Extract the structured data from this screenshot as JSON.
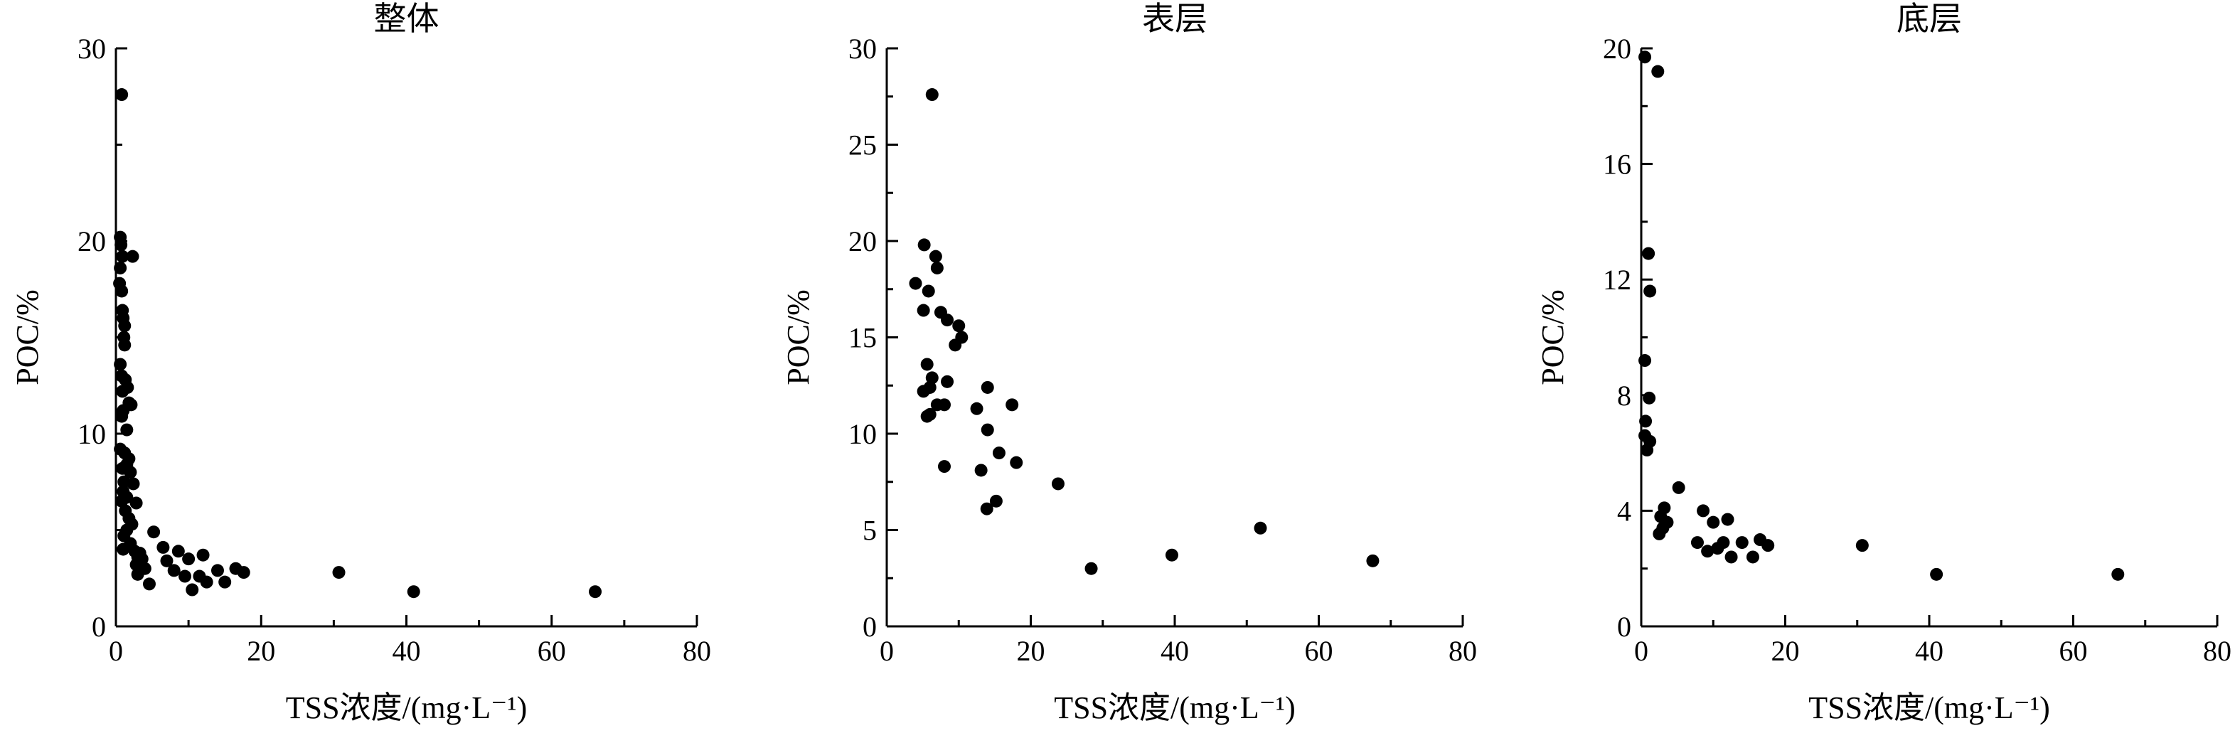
{
  "chart_data": [
    {
      "type": "scatter",
      "title": "整体",
      "xlabel": "TSS浓度/(mg·L⁻¹)",
      "ylabel": "POC/%",
      "xlim": [
        0,
        80
      ],
      "ylim": [
        0,
        30
      ],
      "xticks": [
        0,
        20,
        40,
        60,
        80
      ],
      "yticks": [
        0,
        10,
        20,
        30
      ],
      "grid": false,
      "series": [
        {
          "points": [
            [
              0.8,
              27.6
            ],
            [
              0.6,
              20.2
            ],
            [
              0.7,
              19.8
            ],
            [
              0.9,
              19.2
            ],
            [
              2.3,
              19.2
            ],
            [
              0.6,
              18.6
            ],
            [
              0.5,
              17.8
            ],
            [
              0.8,
              17.4
            ],
            [
              0.9,
              16.4
            ],
            [
              1.0,
              16.0
            ],
            [
              1.2,
              15.6
            ],
            [
              1.1,
              15.0
            ],
            [
              1.2,
              14.6
            ],
            [
              0.6,
              13.6
            ],
            [
              0.8,
              13.0
            ],
            [
              1.3,
              12.8
            ],
            [
              1.6,
              12.4
            ],
            [
              0.9,
              12.2
            ],
            [
              1.8,
              11.6
            ],
            [
              2.1,
              11.5
            ],
            [
              1.0,
              11.2
            ],
            [
              0.8,
              10.9
            ],
            [
              1.5,
              10.2
            ],
            [
              0.6,
              9.2
            ],
            [
              1.2,
              9.0
            ],
            [
              1.8,
              8.7
            ],
            [
              1.5,
              8.4
            ],
            [
              0.9,
              8.2
            ],
            [
              2.0,
              8.0
            ],
            [
              1.1,
              7.5
            ],
            [
              2.4,
              7.4
            ],
            [
              1.0,
              7.0
            ],
            [
              1.5,
              6.7
            ],
            [
              0.8,
              6.5
            ],
            [
              2.8,
              6.4
            ],
            [
              1.3,
              6.0
            ],
            [
              1.8,
              5.6
            ],
            [
              2.2,
              5.3
            ],
            [
              1.5,
              5.0
            ],
            [
              1.1,
              4.7
            ],
            [
              5.2,
              4.9
            ],
            [
              2.0,
              4.3
            ],
            [
              1.0,
              4.0
            ],
            [
              6.5,
              4.1
            ],
            [
              2.6,
              3.9
            ],
            [
              3.3,
              3.8
            ],
            [
              8.6,
              3.9
            ],
            [
              3.0,
              3.6
            ],
            [
              3.6,
              3.5
            ],
            [
              7.0,
              3.4
            ],
            [
              12.0,
              3.7
            ],
            [
              2.8,
              3.2
            ],
            [
              10.0,
              3.5
            ],
            [
              4.0,
              3.0
            ],
            [
              8.0,
              2.9
            ],
            [
              14.0,
              2.9
            ],
            [
              16.5,
              3.0
            ],
            [
              17.6,
              2.8
            ],
            [
              3.0,
              2.7
            ],
            [
              9.5,
              2.6
            ],
            [
              11.5,
              2.6
            ],
            [
              12.5,
              2.3
            ],
            [
              4.6,
              2.2
            ],
            [
              15.0,
              2.3
            ],
            [
              10.5,
              1.9
            ],
            [
              30.7,
              2.8
            ],
            [
              41.0,
              1.8
            ],
            [
              66.0,
              1.8
            ]
          ]
        }
      ]
    },
    {
      "type": "scatter",
      "title": "表层",
      "xlabel": "TSS浓度/(mg·L⁻¹)",
      "ylabel": "POC/%",
      "xlim": [
        0,
        80
      ],
      "ylim": [
        0,
        30
      ],
      "xticks": [
        0,
        20,
        40,
        60,
        80
      ],
      "yticks": [
        0,
        5,
        10,
        15,
        20,
        25,
        30
      ],
      "grid": false,
      "series": [
        {
          "points": [
            [
              6.3,
              27.6
            ],
            [
              5.2,
              19.8
            ],
            [
              6.8,
              19.2
            ],
            [
              4.0,
              17.8
            ],
            [
              5.8,
              17.4
            ],
            [
              7.0,
              18.6
            ],
            [
              5.1,
              16.4
            ],
            [
              7.5,
              16.3
            ],
            [
              8.4,
              15.9
            ],
            [
              10.0,
              15.6
            ],
            [
              10.4,
              15.0
            ],
            [
              9.5,
              14.6
            ],
            [
              5.6,
              13.6
            ],
            [
              6.3,
              12.9
            ],
            [
              8.4,
              12.7
            ],
            [
              6.0,
              12.4
            ],
            [
              14.0,
              12.4
            ],
            [
              5.1,
              12.2
            ],
            [
              7.0,
              11.5
            ],
            [
              8.0,
              11.5
            ],
            [
              17.4,
              11.5
            ],
            [
              12.5,
              11.3
            ],
            [
              6.0,
              11.0
            ],
            [
              5.6,
              10.9
            ],
            [
              14.0,
              10.2
            ],
            [
              15.6,
              9.0
            ],
            [
              8.0,
              8.3
            ],
            [
              18.0,
              8.5
            ],
            [
              13.1,
              8.1
            ],
            [
              23.8,
              7.4
            ],
            [
              15.2,
              6.5
            ],
            [
              13.9,
              6.1
            ],
            [
              51.9,
              5.1
            ],
            [
              39.6,
              3.7
            ],
            [
              67.5,
              3.4
            ],
            [
              28.4,
              3.0
            ]
          ]
        }
      ]
    },
    {
      "type": "scatter",
      "title": "底层",
      "xlabel": "TSS浓度/(mg·L⁻¹)",
      "ylabel": "POC/%",
      "xlim": [
        0,
        80
      ],
      "ylim": [
        0,
        20
      ],
      "xticks": [
        0,
        20,
        40,
        60,
        80
      ],
      "yticks": [
        0,
        4,
        8,
        12,
        16,
        20
      ],
      "grid": false,
      "series": [
        {
          "points": [
            [
              0.5,
              19.7
            ],
            [
              2.3,
              19.2
            ],
            [
              1.0,
              12.9
            ],
            [
              1.2,
              11.6
            ],
            [
              0.5,
              9.2
            ],
            [
              1.1,
              7.9
            ],
            [
              0.6,
              7.1
            ],
            [
              0.5,
              6.6
            ],
            [
              1.2,
              6.4
            ],
            [
              0.8,
              6.1
            ],
            [
              5.2,
              4.8
            ],
            [
              3.2,
              4.1
            ],
            [
              8.6,
              4.0
            ],
            [
              2.7,
              3.8
            ],
            [
              3.6,
              3.6
            ],
            [
              10.0,
              3.6
            ],
            [
              12.0,
              3.7
            ],
            [
              3.0,
              3.4
            ],
            [
              2.5,
              3.2
            ],
            [
              7.8,
              2.9
            ],
            [
              14.0,
              2.9
            ],
            [
              16.5,
              3.0
            ],
            [
              17.6,
              2.8
            ],
            [
              9.2,
              2.6
            ],
            [
              10.6,
              2.7
            ],
            [
              11.4,
              2.9
            ],
            [
              12.5,
              2.4
            ],
            [
              15.5,
              2.4
            ],
            [
              30.7,
              2.8
            ],
            [
              41.0,
              1.8
            ],
            [
              66.2,
              1.8
            ]
          ]
        }
      ]
    }
  ]
}
